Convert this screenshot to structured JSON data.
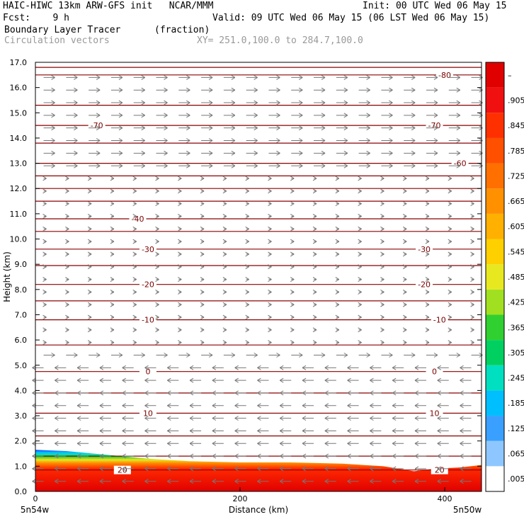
{
  "header": {
    "line1_left": "HAIC-HIWC 13km ARW-GFS init   NCAR/MMM",
    "line1_right": "Init: 00 UTC Wed 06 May 15",
    "line2_left": "Fcst:    9 h",
    "line2_right": "Valid: 09 UTC Wed 06 May 15 (06 LST Wed 06 May 15)",
    "line3_field": "Boundary Layer Tracer",
    "line3_units": "(fraction)",
    "line4_field": "Circulation vectors",
    "line4_xy": "XY= 251.0,100.0 to 284.7,100.0"
  },
  "chart_data": {
    "type": "heatmap",
    "ylabel": "Height (km)",
    "xlabel": "Distance (km)",
    "x_start_label": "5n54w",
    "x_end_label": "5n50w",
    "xlim": [
      0,
      436
    ],
    "ylim": [
      0,
      17
    ],
    "xticks": [
      0,
      200,
      400
    ],
    "yticks": [
      "0.0",
      "1.0",
      "2.0",
      "3.0",
      "4.0",
      "5.0",
      "6.0",
      "7.0",
      "8.0",
      "9.0",
      "10.0",
      "11.0",
      "12.0",
      "13.0",
      "14.0",
      "15.0",
      "16.0",
      "17.0"
    ],
    "colorbar": {
      "labels": [
        ".005",
        ".065",
        ".125",
        ".185",
        ".245",
        ".305",
        ".365",
        ".425",
        ".485",
        ".545",
        ".605",
        ".665",
        ".725",
        ".785",
        ".845",
        ".905",
        "–"
      ],
      "colors": [
        "#ffffff",
        "#8ec7ff",
        "#3aa0ff",
        "#00bfff",
        "#00e0c0",
        "#00d060",
        "#30d030",
        "#a0e020",
        "#e8e820",
        "#ffd000",
        "#ffb000",
        "#ff9000",
        "#ff7000",
        "#ff5000",
        "#ff3000",
        "#f01010",
        "#e00000"
      ]
    },
    "tracer_top_km": [
      1.65,
      1.6,
      1.45,
      1.3,
      1.2,
      1.15,
      1.15,
      1.1,
      1.0,
      0.8,
      0.9,
      0.95,
      1.05
    ],
    "tracer_x_km": [
      0,
      30,
      70,
      110,
      150,
      200,
      250,
      300,
      340,
      370,
      390,
      415,
      436
    ],
    "temperature_contours_C": [
      {
        "value": "-80",
        "label_x_km": [
          400
        ],
        "y_km": 16.5
      },
      {
        "value": "-70",
        "label_x_km": [
          60,
          390
        ],
        "y_km": 14.5
      },
      {
        "value": "-60",
        "label_x_km": [
          415
        ],
        "y_km": 13.0
      },
      {
        "value": "-40",
        "label_x_km": [
          100
        ],
        "y_km": 10.8
      },
      {
        "value": "-30",
        "label_x_km": [
          110,
          380
        ],
        "y_km": 9.6
      },
      {
        "value": "-20",
        "label_x_km": [
          110,
          380
        ],
        "y_km": 8.2
      },
      {
        "value": "-10",
        "label_x_km": [
          110,
          395
        ],
        "y_km": 6.8
      },
      {
        "value": "0",
        "label_x_km": [
          110,
          390
        ],
        "y_km": 4.75
      },
      {
        "value": "10",
        "label_x_km": [
          110,
          390
        ],
        "y_km": 3.1
      },
      {
        "value": "20",
        "label_x_km": [
          85,
          395
        ],
        "y_km": 0.85
      }
    ],
    "vectors": {
      "upper_direction": "east",
      "lower_direction": "west",
      "reversal_height_km": 5.0
    }
  }
}
